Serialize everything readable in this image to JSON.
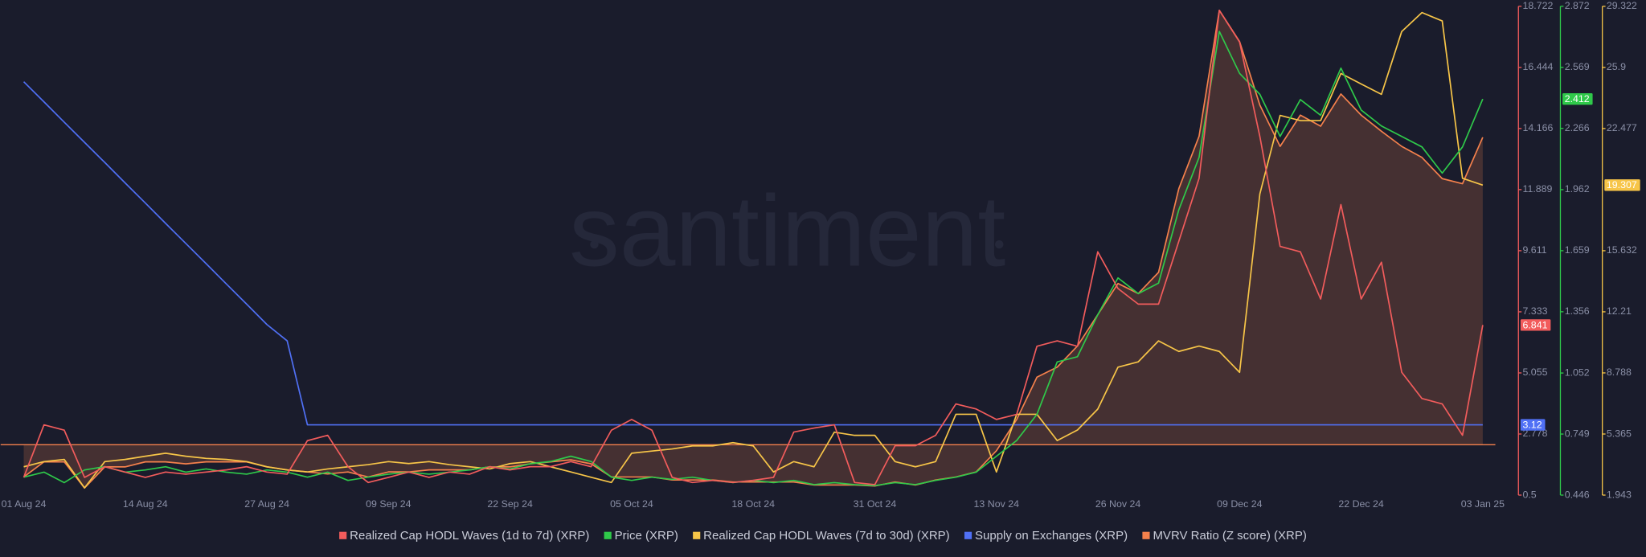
{
  "chart_data": {
    "type": "line",
    "watermark": "santiment",
    "legend": "bottom",
    "categories": [
      "01 Aug 24",
      null,
      null,
      null,
      null,
      null,
      "14 Aug 24",
      null,
      null,
      null,
      null,
      null,
      "27 Aug 24",
      null,
      null,
      null,
      null,
      null,
      "09 Sep 24",
      null,
      null,
      null,
      null,
      null,
      "22 Sep 24",
      null,
      null,
      null,
      null,
      null,
      "05 Oct 24",
      null,
      null,
      null,
      null,
      null,
      "18 Oct 24",
      null,
      null,
      null,
      null,
      null,
      "31 Oct 24",
      null,
      null,
      null,
      null,
      null,
      "13 Nov 24",
      null,
      null,
      null,
      null,
      null,
      "26 Nov 24",
      null,
      null,
      null,
      null,
      null,
      "09 Dec 24",
      null,
      null,
      null,
      null,
      null,
      "22 Dec 24",
      null,
      null,
      null,
      null,
      null,
      "03 Jan 25"
    ],
    "ylim": [
      0.5,
      18.722
    ],
    "yticks": [
      0.5,
      2.778,
      5.055,
      7.333,
      9.611,
      11.889,
      14.166,
      16.444,
      18.722
    ],
    "y2lim": [
      0.446,
      2.872
    ],
    "y2ticks": [
      0.446,
      0.749,
      1.052,
      1.356,
      1.659,
      1.962,
      2.266,
      2.569,
      2.872
    ],
    "y3lim": [
      1.943,
      29.322
    ],
    "y3ticks": [
      1.943,
      5.365,
      8.788,
      12.21,
      15.632,
      22.477,
      25.9,
      29.322
    ],
    "y4lim": [
      -0.5,
      4.35
    ],
    "series": [
      {
        "name": "Realized Cap HODL Waves (1d to 7d) (XRP)",
        "color": "#f25c5c",
        "axis": "y",
        "values": [
          1.16,
          3.12,
          2.92,
          1.16,
          1.56,
          1.36,
          1.16,
          1.36,
          1.28,
          1.36,
          1.44,
          1.56,
          1.36,
          1.28,
          2.53,
          2.73,
          1.56,
          0.97,
          1.16,
          1.36,
          1.16,
          1.36,
          1.28,
          1.56,
          1.44,
          1.56,
          1.56,
          1.75,
          1.56,
          2.92,
          3.32,
          2.92,
          1.16,
          0.97,
          1.05,
          0.97,
          1.05,
          1.16,
          2.85,
          3.0,
          3.12,
          0.97,
          0.89,
          2.34,
          2.34,
          2.73,
          3.9,
          3.71,
          3.32,
          3.51,
          6.05,
          6.25,
          6.05,
          9.57,
          8.2,
          7.62,
          7.62,
          9.96,
          12.31,
          18.57,
          17.39,
          13.87,
          9.77,
          9.57,
          7.81,
          11.33,
          7.81,
          9.18,
          5.08,
          4.1,
          3.9,
          2.73,
          6.841
        ]
      },
      {
        "name": "Price (XRP)",
        "color": "#2fc94a",
        "axis": "y2",
        "values": [
          0.535,
          0.56,
          0.508,
          0.571,
          0.587,
          0.56,
          0.571,
          0.587,
          0.56,
          0.576,
          0.56,
          0.55,
          0.571,
          0.56,
          0.535,
          0.56,
          0.519,
          0.535,
          0.55,
          0.56,
          0.55,
          0.56,
          0.571,
          0.587,
          0.576,
          0.602,
          0.613,
          0.639,
          0.613,
          0.535,
          0.519,
          0.535,
          0.524,
          0.535,
          0.519,
          0.508,
          0.519,
          0.508,
          0.519,
          0.498,
          0.508,
          0.498,
          0.493,
          0.508,
          0.498,
          0.519,
          0.535,
          0.56,
          0.639,
          0.717,
          0.847,
          1.107,
          1.133,
          1.341,
          1.524,
          1.446,
          1.498,
          1.862,
          2.122,
          2.747,
          2.539,
          2.435,
          2.226,
          2.409,
          2.331,
          2.565,
          2.357,
          2.278,
          2.226,
          2.174,
          2.044,
          2.174,
          2.412
        ]
      },
      {
        "name": "Realized Cap HODL Waves (7d to 30d) (XRP)",
        "color": "#f7c548",
        "axis": "y3",
        "values": [
          3.53,
          3.82,
          3.94,
          2.35,
          3.82,
          3.94,
          4.12,
          4.29,
          4.12,
          4.0,
          3.94,
          3.82,
          3.53,
          3.35,
          3.24,
          3.41,
          3.53,
          3.65,
          3.82,
          3.71,
          3.82,
          3.65,
          3.53,
          3.41,
          3.71,
          3.82,
          3.53,
          3.24,
          2.94,
          2.65,
          4.29,
          4.41,
          4.53,
          4.7,
          4.7,
          4.88,
          4.7,
          3.24,
          3.82,
          3.53,
          5.47,
          5.29,
          5.29,
          3.82,
          3.53,
          3.82,
          6.47,
          6.47,
          3.24,
          6.47,
          6.47,
          5.0,
          5.59,
          6.76,
          9.11,
          9.41,
          10.58,
          9.99,
          10.29,
          9.99,
          8.82,
          18.81,
          23.21,
          22.92,
          22.92,
          25.56,
          24.97,
          24.39,
          27.91,
          28.97,
          28.5,
          19.69,
          19.307
        ]
      },
      {
        "name": "Supply on Exchanges (XRP)",
        "color": "#5070f5",
        "axis": "y",
        "values": [
          15.91,
          15.16,
          14.4,
          13.65,
          12.9,
          12.14,
          11.39,
          10.63,
          9.88,
          9.13,
          8.37,
          7.62,
          6.86,
          6.25,
          3.12,
          3.12,
          3.12,
          3.12,
          3.12,
          3.12,
          3.12,
          3.12,
          3.12,
          3.12,
          3.12,
          3.12,
          3.12,
          3.12,
          3.12,
          3.12,
          3.12,
          3.12,
          3.12,
          3.12,
          3.12,
          3.12,
          3.12,
          3.12,
          3.12,
          3.12,
          3.12,
          3.12,
          3.12,
          3.12,
          3.12,
          3.12,
          3.12,
          3.12,
          3.12,
          3.12,
          3.12,
          3.12,
          3.12,
          3.12,
          3.12,
          3.12,
          3.12,
          3.12,
          3.12,
          3.12,
          3.12,
          3.12,
          3.12,
          3.12,
          3.12,
          3.12,
          3.12,
          3.12,
          3.12,
          3.12,
          3.12,
          3.12,
          3.12
        ]
      },
      {
        "name": "MVRV Ratio (Z score) (XRP)",
        "color": "#f5814c",
        "axis": "y4",
        "fill": true,
        "values": [
          -0.32,
          -0.17,
          -0.17,
          -0.43,
          -0.22,
          -0.22,
          -0.17,
          -0.17,
          -0.19,
          -0.17,
          -0.17,
          -0.17,
          -0.22,
          -0.25,
          -0.27,
          -0.29,
          -0.27,
          -0.32,
          -0.27,
          -0.27,
          -0.25,
          -0.25,
          -0.25,
          -0.22,
          -0.22,
          -0.19,
          -0.17,
          -0.15,
          -0.19,
          -0.32,
          -0.32,
          -0.32,
          -0.35,
          -0.35,
          -0.35,
          -0.37,
          -0.37,
          -0.37,
          -0.37,
          -0.4,
          -0.4,
          -0.4,
          -0.41,
          -0.37,
          -0.4,
          -0.35,
          -0.32,
          -0.27,
          -0.06,
          0.25,
          0.67,
          0.77,
          0.98,
          1.29,
          1.6,
          1.5,
          1.71,
          2.54,
          3.06,
          4.31,
          4.0,
          3.37,
          2.96,
          3.27,
          3.16,
          3.48,
          3.27,
          3.11,
          2.96,
          2.85,
          2.64,
          2.59,
          3.05
        ]
      }
    ]
  }
}
